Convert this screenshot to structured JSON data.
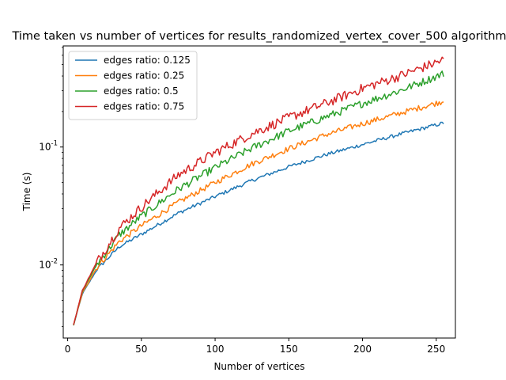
{
  "chart_data": {
    "type": "line",
    "title": "Time taken vs number of vertices for results_randomized_vertex_cover_500 algorithm",
    "xlabel": "Number of vertices",
    "ylabel": "Time (s)",
    "xlim": [
      -3,
      263
    ],
    "ylim": [
      0.0024,
      0.72
    ],
    "yscale": "log",
    "x_ticks": [
      0,
      50,
      100,
      150,
      200,
      250
    ],
    "x_tick_labels": [
      "0",
      "50",
      "100",
      "150",
      "200",
      "250"
    ],
    "y_ticks": [
      0.01,
      0.1
    ],
    "y_tick_labels": [
      "10^-2",
      "10^-1"
    ],
    "grid": false,
    "legend_position": "top-left",
    "x_start": 4,
    "x_end": 255,
    "series": [
      {
        "name": "edges ratio: 0.125",
        "color": "#1f77b4",
        "points": [
          [
            4,
            0.0031
          ],
          [
            10,
            0.0057
          ],
          [
            20,
            0.0092
          ],
          [
            35,
            0.0143
          ],
          [
            50,
            0.0182
          ],
          [
            75,
            0.0275
          ],
          [
            100,
            0.038
          ],
          [
            125,
            0.052
          ],
          [
            150,
            0.068
          ],
          [
            175,
            0.086
          ],
          [
            200,
            0.105
          ],
          [
            225,
            0.128
          ],
          [
            255,
            0.16
          ]
        ]
      },
      {
        "name": "edges ratio: 0.25",
        "color": "#ff7f0e",
        "points": [
          [
            4,
            0.0031
          ],
          [
            10,
            0.0058
          ],
          [
            20,
            0.0096
          ],
          [
            35,
            0.0158
          ],
          [
            50,
            0.0215
          ],
          [
            75,
            0.034
          ],
          [
            100,
            0.05
          ],
          [
            125,
            0.072
          ],
          [
            150,
            0.097
          ],
          [
            175,
            0.127
          ],
          [
            200,
            0.158
          ],
          [
            225,
            0.193
          ],
          [
            255,
            0.245
          ]
        ]
      },
      {
        "name": "edges ratio: 0.5",
        "color": "#2ca02c",
        "points": [
          [
            4,
            0.0031
          ],
          [
            10,
            0.006
          ],
          [
            20,
            0.0102
          ],
          [
            35,
            0.018
          ],
          [
            50,
            0.026
          ],
          [
            75,
            0.044
          ],
          [
            100,
            0.067
          ],
          [
            125,
            0.098
          ],
          [
            150,
            0.137
          ],
          [
            175,
            0.18
          ],
          [
            200,
            0.235
          ],
          [
            225,
            0.3
          ],
          [
            255,
            0.42
          ]
        ]
      },
      {
        "name": "edges ratio: 0.75",
        "color": "#d62728",
        "points": [
          [
            4,
            0.0031
          ],
          [
            10,
            0.0061
          ],
          [
            20,
            0.0107
          ],
          [
            35,
            0.0205
          ],
          [
            50,
            0.031
          ],
          [
            75,
            0.058
          ],
          [
            100,
            0.09
          ],
          [
            125,
            0.13
          ],
          [
            150,
            0.178
          ],
          [
            175,
            0.235
          ],
          [
            200,
            0.315
          ],
          [
            225,
            0.4
          ],
          [
            255,
            0.55
          ]
        ]
      }
    ]
  }
}
